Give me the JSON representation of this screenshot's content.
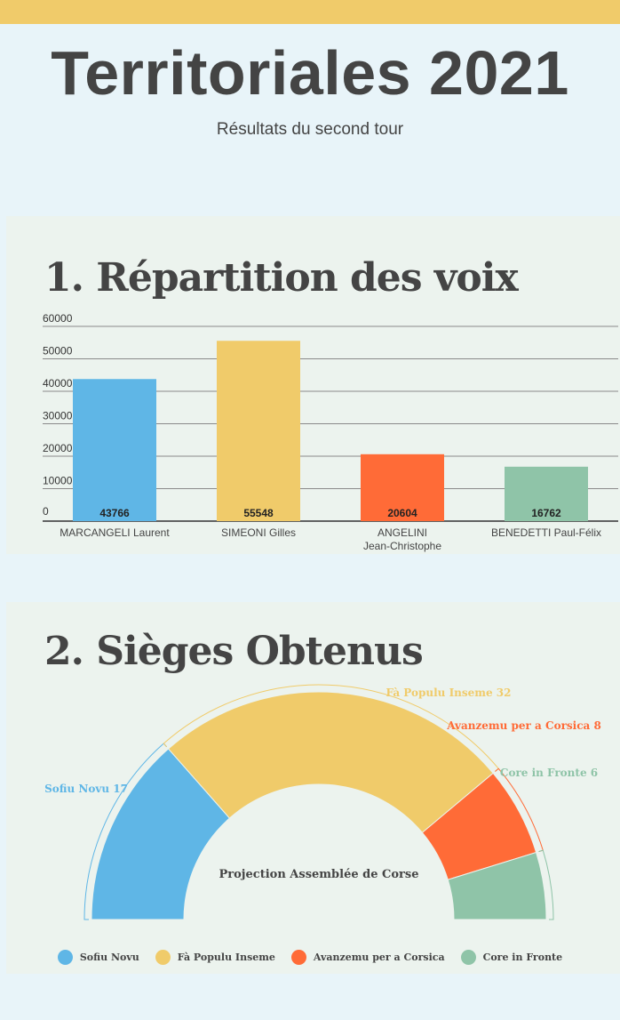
{
  "header": {
    "title": "Territoriales 2021",
    "subtitle": "Résultats du second tour"
  },
  "chart_data": [
    {
      "type": "bar",
      "title": "1. Répartition des voix",
      "categories": [
        "MARCANGELI Laurent",
        "SIMEONI Gilles",
        "ANGELINI Jean-Christophe",
        "BENEDETTI Paul-Félix"
      ],
      "category_lines": [
        [
          "MARCANGELI Laurent"
        ],
        [
          "SIMEONI Gilles"
        ],
        [
          "ANGELINI",
          "Jean-Christophe"
        ],
        [
          "BENEDETTI Paul-Félix"
        ]
      ],
      "values": [
        43766,
        55548,
        20604,
        16762
      ],
      "colors": [
        "#5fb6e6",
        "#f0cb6a",
        "#ff6b37",
        "#8fc4a8"
      ],
      "ylim": [
        0,
        60000
      ],
      "yticks": [
        0,
        10000,
        20000,
        30000,
        40000,
        50000,
        60000
      ],
      "grid": true
    },
    {
      "type": "pie",
      "subtype": "semi-donut",
      "title": "2. Sièges Obtenus",
      "center_label": "Projection Assemblée de Corse",
      "labels": [
        "Sofiu Novu",
        "Fà Populu Inseme",
        "Avanzemu per a Corsica",
        "Core in Fronte"
      ],
      "values": [
        17,
        32,
        8,
        6
      ],
      "slice_labels": [
        "Sofiu Novu 17",
        "Fà Populu Inseme 32",
        "Avanzemu per a Corsica 8",
        "Core in Fronte 6"
      ],
      "colors": [
        "#5fb6e6",
        "#f0cb6a",
        "#ff6b37",
        "#8fc4a8"
      ],
      "legend_position": "bottom"
    }
  ]
}
